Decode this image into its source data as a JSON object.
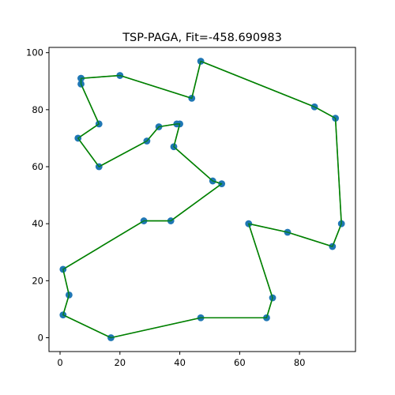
{
  "chart_data": {
    "type": "line",
    "title": "TSP-PAGA, Fit=-458.690983",
    "xlabel": "",
    "ylabel": "",
    "xlim": [
      -3.7,
      98.7
    ],
    "ylim": [
      -4.85,
      101.85
    ],
    "xticks": [
      0,
      20,
      40,
      60,
      80
    ],
    "yticks": [
      0,
      20,
      40,
      60,
      80,
      100
    ],
    "grid": false,
    "series": [
      {
        "line_color": "#008000",
        "marker_color": "#1f77b4",
        "points": [
          [
            7,
            91
          ],
          [
            20,
            92
          ],
          [
            44,
            84
          ],
          [
            47,
            97
          ],
          [
            85,
            81
          ],
          [
            92,
            77
          ],
          [
            94,
            40
          ],
          [
            91,
            32
          ],
          [
            76,
            37
          ],
          [
            63,
            40
          ],
          [
            71,
            14
          ],
          [
            69,
            7
          ],
          [
            47,
            7
          ],
          [
            17,
            0
          ],
          [
            1,
            8
          ],
          [
            3,
            15
          ],
          [
            1,
            24
          ],
          [
            28,
            41
          ],
          [
            37,
            41
          ],
          [
            54,
            54
          ],
          [
            51,
            55
          ],
          [
            38,
            67
          ],
          [
            40,
            75
          ],
          [
            39,
            75
          ],
          [
            33,
            74
          ],
          [
            29,
            69
          ],
          [
            13,
            60
          ],
          [
            6,
            70
          ],
          [
            13,
            75
          ],
          [
            7,
            89
          ],
          [
            7,
            91
          ]
        ]
      }
    ]
  }
}
